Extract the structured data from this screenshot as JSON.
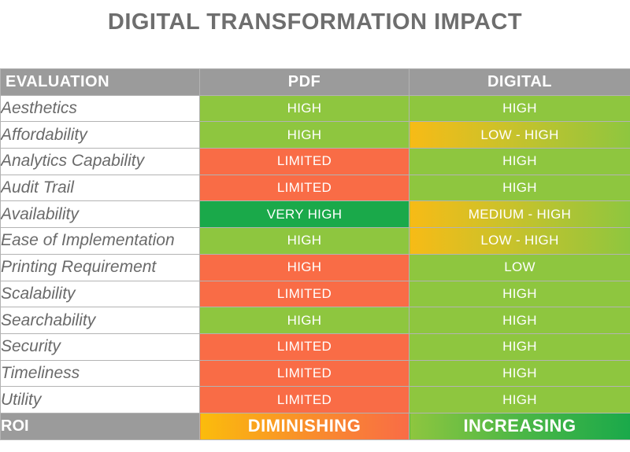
{
  "title": "DIGITAL TRANSFORMATION IMPACT",
  "headers": {
    "evaluation": "EVALUATION",
    "pdf": "PDF",
    "digital": "DIGITAL"
  },
  "colors": {
    "green": "#8ec63f",
    "dark_green": "#1aa94a",
    "red": "#f96c46",
    "yellow": "#f7bb16",
    "header_gray": "#9b9b9b",
    "title_gray": "#6e6e6e"
  },
  "rows": [
    {
      "label": "Aesthetics",
      "pdf": "HIGH",
      "pdf_color": "green",
      "digital": "HIGH",
      "digital_color": "green"
    },
    {
      "label": "Affordability",
      "pdf": "HIGH",
      "pdf_color": "green",
      "digital": "LOW - HIGH",
      "digital_color": "grad"
    },
    {
      "label": "Analytics Capability",
      "pdf": "LIMITED",
      "pdf_color": "red",
      "digital": "HIGH",
      "digital_color": "green"
    },
    {
      "label": "Audit Trail",
      "pdf": "LIMITED",
      "pdf_color": "red",
      "digital": "HIGH",
      "digital_color": "green"
    },
    {
      "label": "Availability",
      "pdf": "VERY HIGH",
      "pdf_color": "dkgreen",
      "digital": "MEDIUM - HIGH",
      "digital_color": "grad"
    },
    {
      "label": "Ease of Implementation",
      "pdf": "HIGH",
      "pdf_color": "green",
      "digital": "LOW - HIGH",
      "digital_color": "grad"
    },
    {
      "label": "Printing Requirement",
      "pdf": "HIGH",
      "pdf_color": "red",
      "digital": "LOW",
      "digital_color": "green"
    },
    {
      "label": "Scalability",
      "pdf": "LIMITED",
      "pdf_color": "red",
      "digital": "HIGH",
      "digital_color": "green"
    },
    {
      "label": "Searchability",
      "pdf": "HIGH",
      "pdf_color": "green",
      "digital": "HIGH",
      "digital_color": "green"
    },
    {
      "label": "Security",
      "pdf": "LIMITED",
      "pdf_color": "red",
      "digital": "HIGH",
      "digital_color": "green"
    },
    {
      "label": "Timeliness",
      "pdf": "LIMITED",
      "pdf_color": "red",
      "digital": "HIGH",
      "digital_color": "green"
    },
    {
      "label": "Utility",
      "pdf": "LIMITED",
      "pdf_color": "red",
      "digital": "HIGH",
      "digital_color": "green"
    }
  ],
  "roi": {
    "label": "ROI",
    "pdf": "DIMINISHING",
    "digital": "INCREASING"
  }
}
